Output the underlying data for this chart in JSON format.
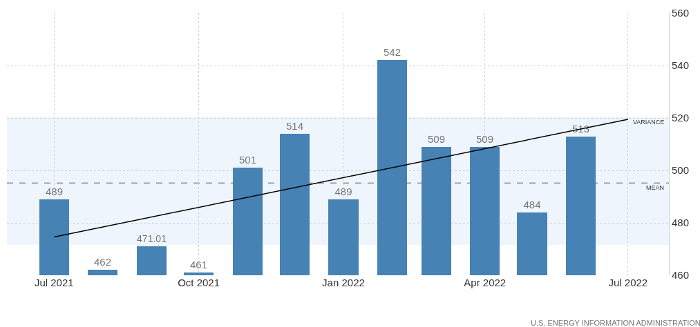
{
  "chart_data": {
    "type": "bar",
    "x": [
      "2021-07",
      "2021-08",
      "2021-09",
      "2021-10",
      "2021-11",
      "2021-12",
      "2022-01",
      "2022-02",
      "2022-03",
      "2022-04",
      "2022-05",
      "2022-06"
    ],
    "series": [
      {
        "color": "#4682b4",
        "values": [
          489,
          462,
          471.01,
          461,
          501,
          514,
          489,
          542,
          509,
          509,
          484,
          513
        ],
        "value_labels": [
          "489",
          "462",
          "471.01",
          "461",
          "501",
          "514",
          "489",
          "542",
          "509",
          "509",
          "484",
          "513"
        ]
      },
      {
        "type": "line",
        "color": "#000000",
        "x": [
          "2021-07",
          "2022-07"
        ],
        "values": [
          474.6,
          519.5
        ]
      }
    ],
    "xlim": [
      "2021-06-01",
      "2022-07-27"
    ],
    "xticks": [
      {
        "value": "2021-07",
        "label": "Jul 2021"
      },
      {
        "value": "2021-10",
        "label": "Oct 2021"
      },
      {
        "value": "2022-01",
        "label": "Jan 2022"
      },
      {
        "value": "2022-04",
        "label": "Apr 2022"
      },
      {
        "value": "2022-07",
        "label": "Jul 2022"
      }
    ],
    "ylim": [
      460,
      560
    ],
    "yticks": [
      460,
      480,
      500,
      520,
      540,
      560
    ],
    "grid": true,
    "ref_lines": [
      {
        "axis": "y",
        "value": 495.2,
        "label": "MEAN",
        "color": "#555555",
        "line_style": "dashed"
      }
    ],
    "bands": [
      {
        "axis": "y",
        "from": 471.5,
        "to": 520.3,
        "label": "VARIANCE",
        "color": "#eef5fc"
      }
    ],
    "annotations": [
      "U.S. ENERGY INFORMATION ADMINISTRATION"
    ]
  }
}
